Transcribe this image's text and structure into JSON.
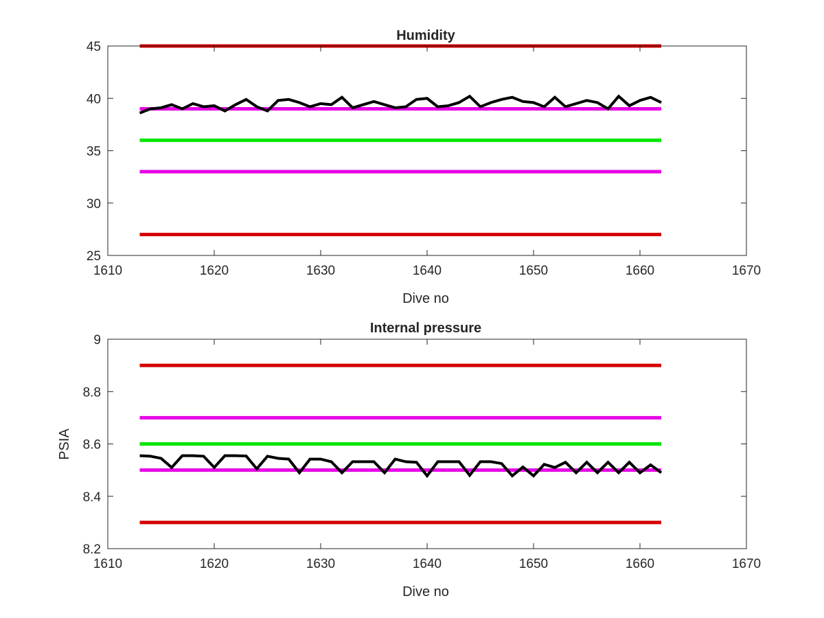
{
  "chart_data": [
    {
      "type": "line",
      "title": "Humidity",
      "xlabel": "Dive no",
      "ylabel": "",
      "xlim": [
        1610,
        1670
      ],
      "ylim": [
        25,
        45
      ],
      "xticks": [
        1610,
        1620,
        1630,
        1640,
        1650,
        1660,
        1670
      ],
      "yticks": [
        25,
        30,
        35,
        40,
        45
      ],
      "grid": false,
      "thresholds": [
        {
          "value": 45,
          "color": "#d40000",
          "x_range": [
            1613,
            1662
          ]
        },
        {
          "value": 39,
          "color": "#e600e6",
          "x_range": [
            1613,
            1662
          ]
        },
        {
          "value": 36,
          "color": "#00e600",
          "x_range": [
            1613,
            1662
          ]
        },
        {
          "value": 33,
          "color": "#e600e6",
          "x_range": [
            1613,
            1662
          ]
        },
        {
          "value": 27,
          "color": "#d40000",
          "x_range": [
            1613,
            1662
          ]
        }
      ],
      "series": [
        {
          "color": "#000000",
          "x": [
            1613,
            1614,
            1615,
            1616,
            1617,
            1618,
            1619,
            1620,
            1621,
            1622,
            1623,
            1624,
            1625,
            1626,
            1627,
            1628,
            1629,
            1630,
            1631,
            1632,
            1633,
            1634,
            1635,
            1636,
            1637,
            1638,
            1639,
            1640,
            1641,
            1642,
            1643,
            1644,
            1645,
            1646,
            1647,
            1648,
            1649,
            1650,
            1651,
            1652,
            1653,
            1654,
            1655,
            1656,
            1657,
            1658,
            1659,
            1660,
            1661,
            1662
          ],
          "values": [
            38.6,
            39.0,
            39.1,
            39.4,
            39.0,
            39.5,
            39.2,
            39.3,
            38.8,
            39.4,
            39.9,
            39.2,
            38.8,
            39.8,
            39.9,
            39.6,
            39.2,
            39.5,
            39.4,
            40.1,
            39.1,
            39.4,
            39.7,
            39.4,
            39.1,
            39.2,
            39.9,
            40.0,
            39.2,
            39.3,
            39.6,
            40.2,
            39.2,
            39.6,
            39.9,
            40.1,
            39.7,
            39.6,
            39.2,
            40.1,
            39.2,
            39.5,
            39.8,
            39.6,
            39.0,
            40.2,
            39.3,
            39.8,
            40.1,
            39.6
          ]
        }
      ]
    },
    {
      "type": "line",
      "title": "Internal pressure",
      "xlabel": "Dive no",
      "ylabel": "PSIA",
      "xlim": [
        1610,
        1670
      ],
      "ylim": [
        8.2,
        9.0
      ],
      "xticks": [
        1610,
        1620,
        1630,
        1640,
        1650,
        1660,
        1670
      ],
      "yticks": [
        8.2,
        8.4,
        8.6,
        8.8,
        9.0
      ],
      "ytick_labels": [
        "8.2",
        "8.4",
        "8.6",
        "8.8",
        "9"
      ],
      "grid": false,
      "thresholds": [
        {
          "value": 8.9,
          "color": "#d40000",
          "x_range": [
            1613,
            1662
          ]
        },
        {
          "value": 8.7,
          "color": "#e600e6",
          "x_range": [
            1613,
            1662
          ]
        },
        {
          "value": 8.6,
          "color": "#00e600",
          "x_range": [
            1613,
            1662
          ]
        },
        {
          "value": 8.5,
          "color": "#e600e6",
          "x_range": [
            1613,
            1662
          ]
        },
        {
          "value": 8.3,
          "color": "#d40000",
          "x_range": [
            1613,
            1662
          ]
        }
      ],
      "series": [
        {
          "color": "#000000",
          "x": [
            1613,
            1614,
            1615,
            1616,
            1617,
            1618,
            1619,
            1620,
            1621,
            1622,
            1623,
            1624,
            1625,
            1626,
            1627,
            1628,
            1629,
            1630,
            1631,
            1632,
            1633,
            1634,
            1635,
            1636,
            1637,
            1638,
            1639,
            1640,
            1641,
            1642,
            1643,
            1644,
            1645,
            1646,
            1647,
            1648,
            1649,
            1650,
            1651,
            1652,
            1653,
            1654,
            1655,
            1656,
            1657,
            1658,
            1659,
            1660,
            1661,
            1662
          ],
          "values": [
            8.555,
            8.553,
            8.545,
            8.51,
            8.555,
            8.555,
            8.553,
            8.51,
            8.555,
            8.555,
            8.554,
            8.505,
            8.553,
            8.545,
            8.542,
            8.49,
            8.542,
            8.542,
            8.532,
            8.49,
            8.532,
            8.532,
            8.532,
            8.49,
            8.542,
            8.532,
            8.53,
            8.478,
            8.532,
            8.532,
            8.532,
            8.48,
            8.532,
            8.532,
            8.525,
            8.478,
            8.512,
            8.478,
            8.522,
            8.51,
            8.53,
            8.49,
            8.53,
            8.49,
            8.53,
            8.49,
            8.53,
            8.49,
            8.52,
            8.49
          ]
        }
      ]
    }
  ]
}
